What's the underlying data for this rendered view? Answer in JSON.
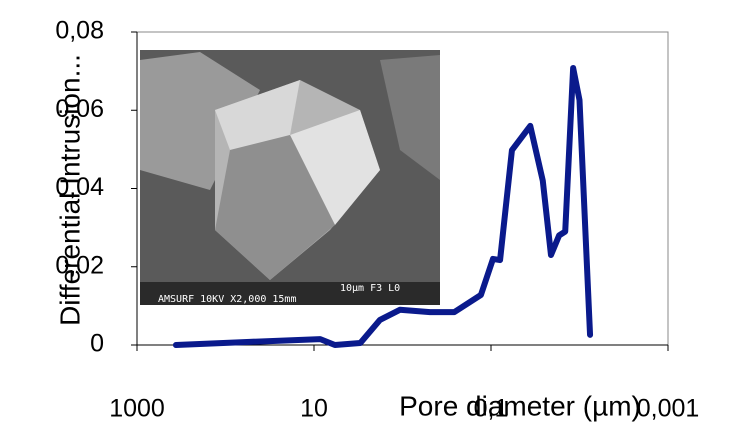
{
  "chart_data": {
    "type": "line",
    "x_label": "Pore diameter (µm)",
    "y_label": "Differential Intrusion...",
    "inset_caption": [
      "10µm F3 L0",
      "AMSURF  10KV  X2,000 15mm"
    ],
    "x": [
      363,
      53,
      8.5,
      5.8,
      3.0,
      1.8,
      1.07,
      0.49,
      0.26,
      0.13,
      0.095,
      0.079,
      0.058,
      0.036,
      0.026,
      0.021,
      0.017,
      0.0145,
      0.0118,
      0.01,
      0.0076
    ],
    "series": [
      {
        "color": "#0a1a8c",
        "values": [
          0,
          0.0008,
          0.0015,
          0,
          0.0005,
          0.0064,
          0.009,
          0.0084,
          0.0084,
          0.0128,
          0.022,
          0.0217,
          0.0498,
          0.056,
          0.042,
          0.023,
          0.028,
          0.029,
          0.0708,
          0.0626,
          0.0026
        ]
      }
    ],
    "xscale": "log",
    "xlim": [
      1000,
      0.001
    ],
    "xticks": [
      1000,
      10,
      {
        "value": 0.1,
        "label": "0,1"
      },
      {
        "value": 0.001,
        "label": "0,001"
      }
    ],
    "ylim": [
      0,
      0.08
    ],
    "yticks": [
      0,
      {
        "value": 0.02,
        "label": "0,02"
      },
      {
        "value": 0.04,
        "label": "0,04"
      },
      {
        "value": 0.06,
        "label": "0,06"
      },
      {
        "value": 0.08,
        "label": "0,08"
      }
    ]
  }
}
